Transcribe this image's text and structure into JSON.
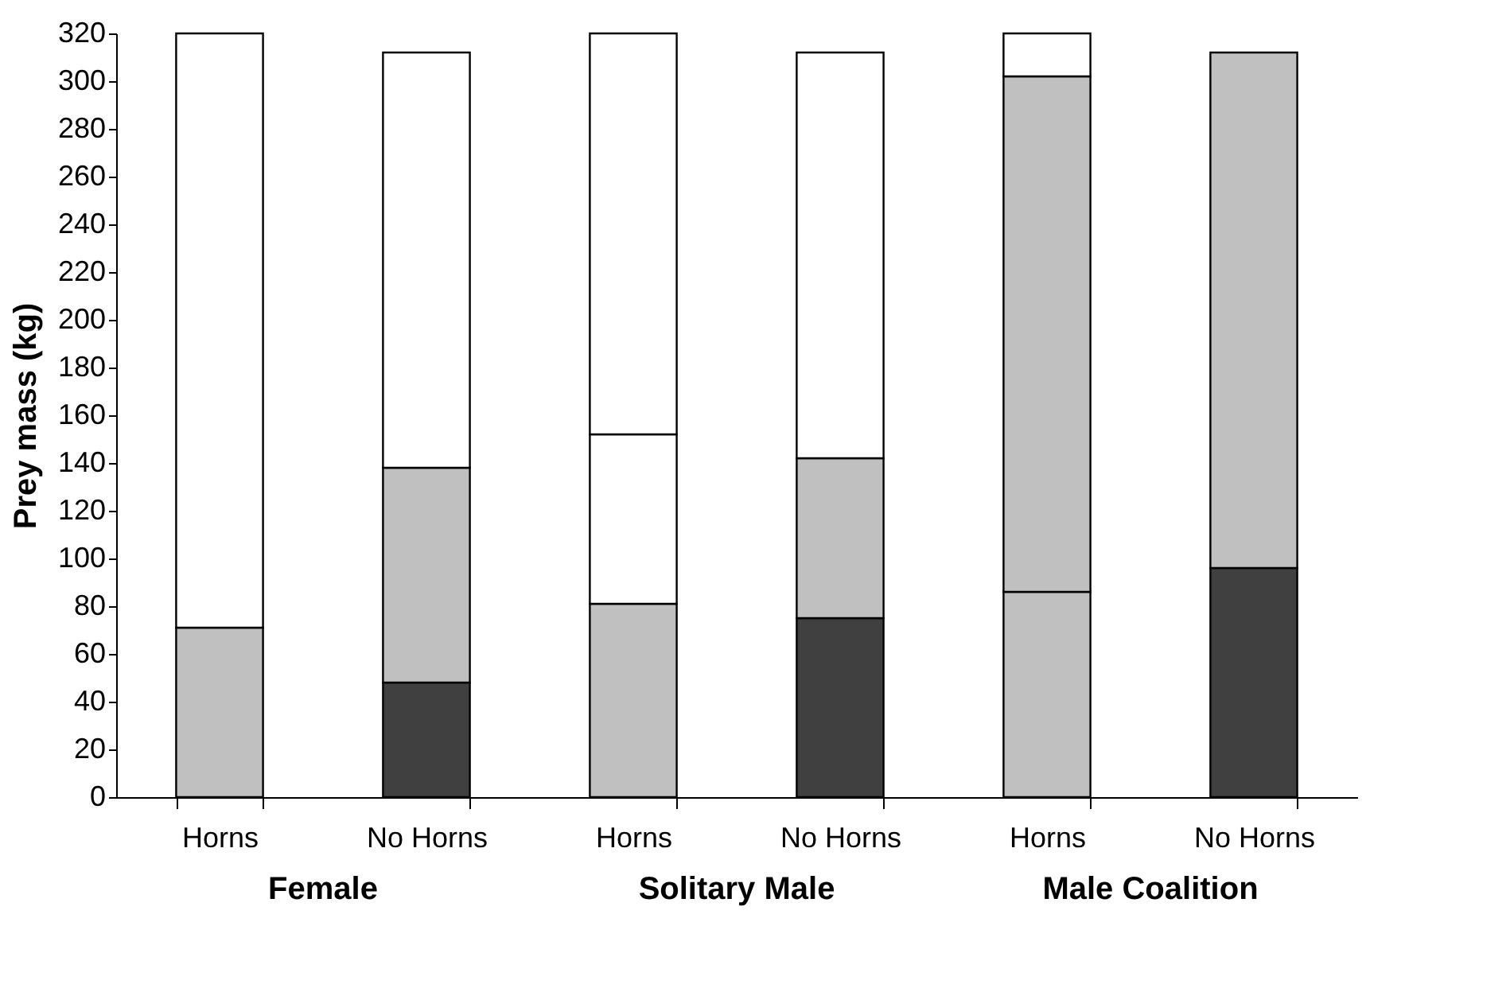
{
  "chart_data": {
    "type": "bar",
    "stacked": true,
    "ylabel": "Prey mass (kg)",
    "categories": [
      "Horns",
      "No Horns",
      "Horns",
      "No Horns",
      "Horns",
      "No Horns"
    ],
    "annotations": [
      "Female",
      "Solitary Male",
      "Male Coalition"
    ],
    "series": [
      {
        "values": [
          71,
          48,
          81,
          75,
          86,
          96
        ],
        "colors": [
          "#c0c0c0",
          "#404040",
          "#c0c0c0",
          "#404040",
          "#c0c0c0",
          "#404040"
        ]
      },
      {
        "values": [
          249,
          90,
          71,
          67,
          216,
          216
        ],
        "colors": [
          "#ffffff",
          "#c0c0c0",
          "#ffffff",
          "#c0c0c0",
          "#c0c0c0",
          "#c0c0c0"
        ]
      },
      {
        "values": [
          null,
          174,
          168,
          170,
          18,
          null
        ],
        "colors": [
          "#ffffff",
          "#ffffff",
          "#ffffff",
          "#ffffff",
          "#ffffff",
          "#ffffff"
        ]
      }
    ],
    "ylim": [
      0,
      320
    ],
    "yticks": [
      0,
      20,
      40,
      60,
      80,
      100,
      120,
      140,
      160,
      180,
      200,
      220,
      240,
      260,
      280,
      300,
      320
    ],
    "grid": false
  }
}
